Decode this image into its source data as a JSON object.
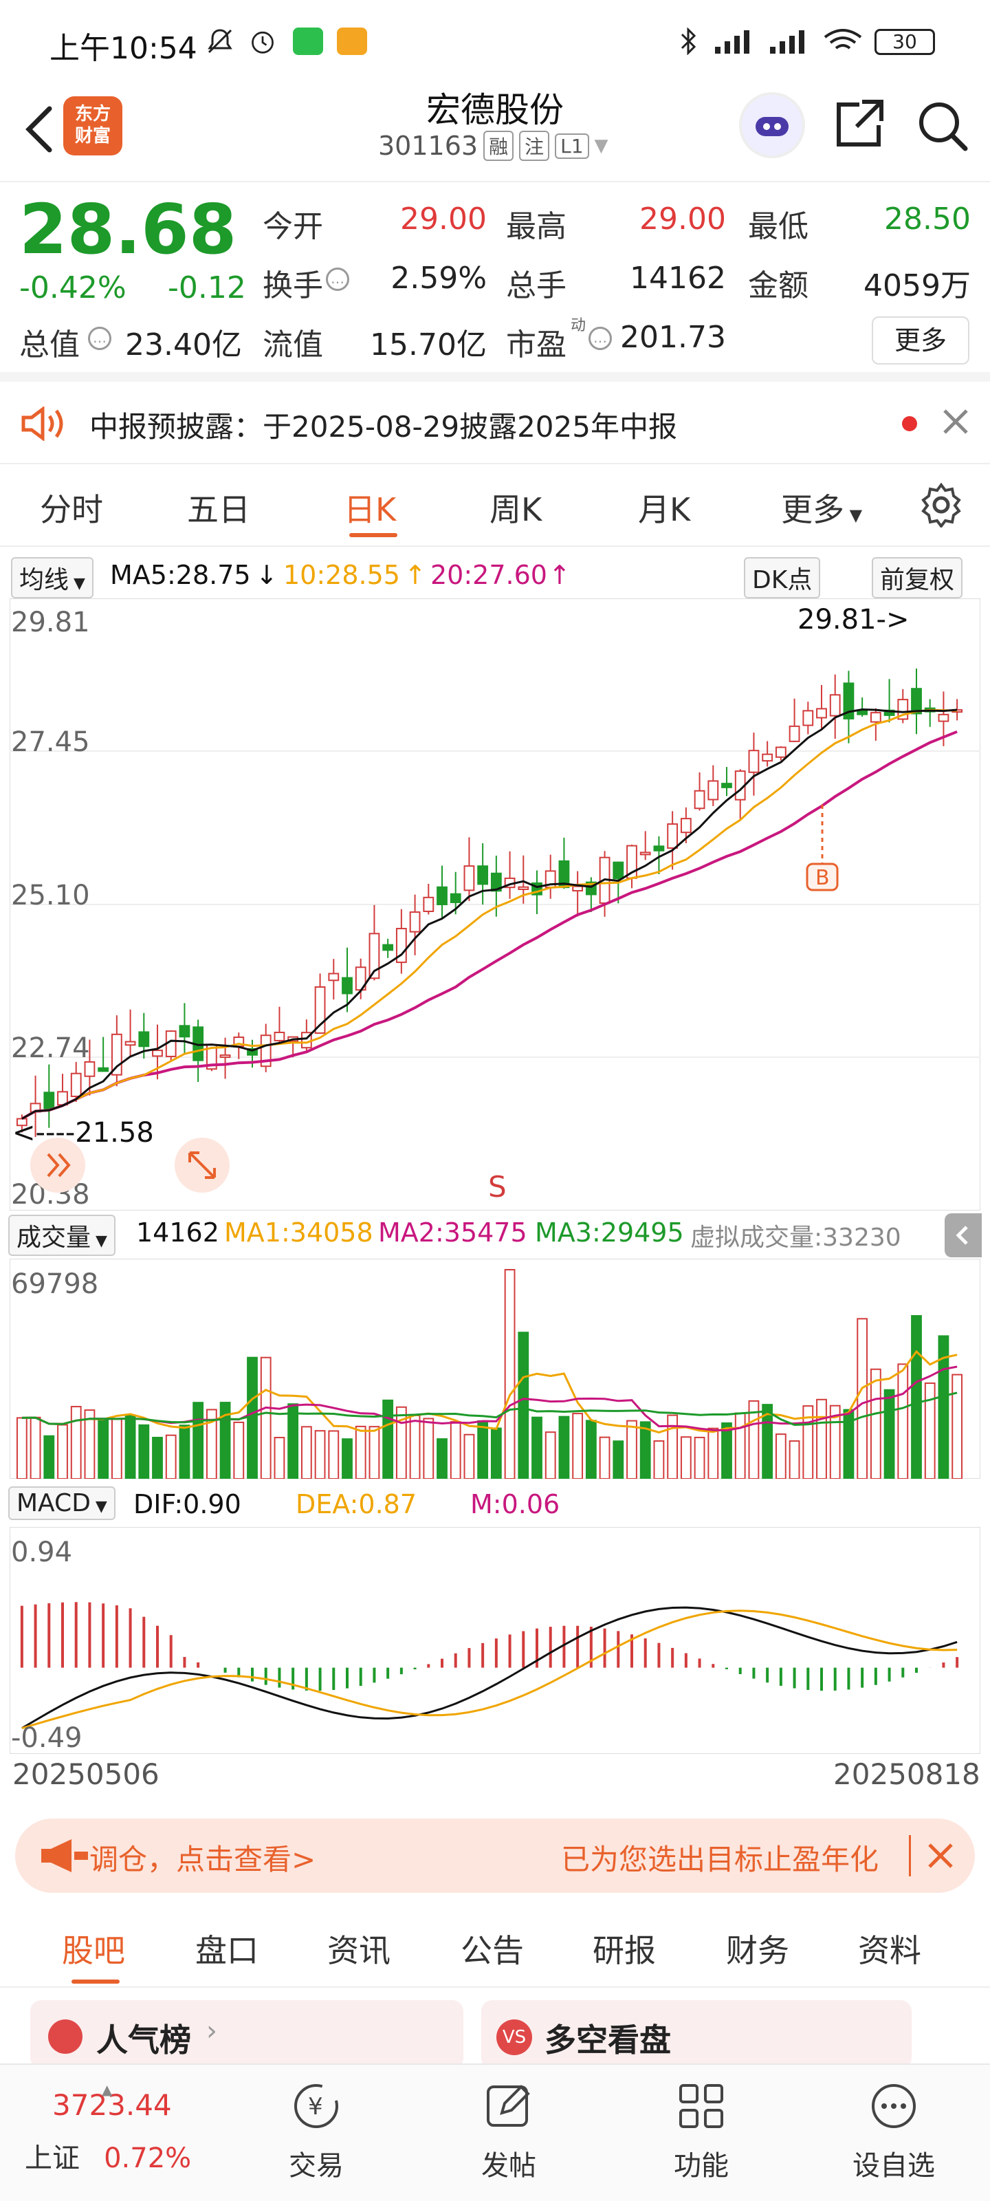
{
  "status_bar": {
    "time": "上午10:54",
    "battery": "30"
  },
  "header": {
    "logo_text_1": "东方",
    "logo_text_2": "财富",
    "stock_name": "宏德股份",
    "stock_code": "301163",
    "tags": [
      "融",
      "注",
      "L1"
    ]
  },
  "quote": {
    "price": "28.68",
    "change_pct": "-0.42%",
    "change_amt": "-0.12",
    "fields": [
      {
        "label": "今开",
        "value": "29.00",
        "color": "#e03a3a"
      },
      {
        "label": "最高",
        "value": "29.00",
        "color": "#e03a3a"
      },
      {
        "label": "最低",
        "value": "28.50",
        "color": "#1d9a2a"
      },
      {
        "label": "换手",
        "value": "2.59%",
        "color": "#222222"
      },
      {
        "label": "总手",
        "value": "14162",
        "color": "#222222"
      },
      {
        "label": "金额",
        "value": "4059万",
        "color": "#222222"
      },
      {
        "label": "总值",
        "value": "23.40亿",
        "color": "#222222"
      },
      {
        "label": "流值",
        "value": "15.70亿",
        "color": "#222222"
      },
      {
        "label": "市盈",
        "value": "201.73",
        "color": "#222222"
      }
    ],
    "pe_superscript": "动",
    "more_label": "更多"
  },
  "notice": {
    "text": "中报预披露：于2025-08-29披露2025年中报"
  },
  "chart_tabs": {
    "items": [
      "分时",
      "五日",
      "日K",
      "周K",
      "月K",
      "更多"
    ],
    "active": "日K"
  },
  "ma_legend": {
    "selector": "均线",
    "ma5": "MA5:28.75",
    "ma10": "10:28.55",
    "ma20": "20:27.60",
    "dk": "DK点",
    "adjust": "前复权"
  },
  "kline": {
    "y_labels": [
      "29.81",
      "27.45",
      "25.10",
      "22.74",
      "20.38"
    ],
    "high_marker": "29.81->",
    "low_marker": "<----21.58",
    "buy_label": "B",
    "sell_label": "S"
  },
  "volume": {
    "selector": "成交量",
    "vol": "14162",
    "ma1": "MA1:34058",
    "ma2": "MA2:35475",
    "ma3": "MA3:29495",
    "virtual": "虚拟成交量:33230",
    "max_label": "69798"
  },
  "macd": {
    "selector": "MACD",
    "dif": "DIF:0.90",
    "dea": "DEA:0.87",
    "m": "M:0.06",
    "top_label": "0.94",
    "bottom_label": "-0.49"
  },
  "dates": {
    "start": "20250506",
    "end": "20250818"
  },
  "banner": {
    "left_text": "调仓，点击查看>",
    "right_text": "已为您选出目标止盈年化"
  },
  "sub_tabs": {
    "items": [
      "股吧",
      "盘口",
      "资讯",
      "公告",
      "研报",
      "财务",
      "资料"
    ],
    "active": "股吧"
  },
  "cards": {
    "popularity": "人气榜",
    "bull_bear": "多空看盘"
  },
  "bottom_nav": {
    "index_value": "3723.44",
    "index_name": "上证",
    "index_change": "0.72%",
    "items": [
      "交易",
      "发帖",
      "功能",
      "设自选"
    ]
  },
  "chart_data": {
    "type": "candlestick",
    "x_range": [
      "20250506",
      "20250818"
    ],
    "ylim": [
      20.38,
      29.81
    ],
    "y_ticks": [
      29.81,
      27.45,
      25.1,
      22.74,
      20.38
    ],
    "high": 29.81,
    "low": 21.58,
    "ma": {
      "MA5": 28.75,
      "MA10": 28.55,
      "MA20": 27.6
    },
    "ma_colors": {
      "MA5": "#111111",
      "MA10": "#f0a500",
      "MA20": "#c8177e"
    },
    "up_color": "#d23c3c",
    "down_color": "#1d9a2a"
  }
}
